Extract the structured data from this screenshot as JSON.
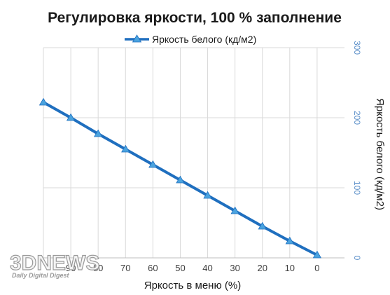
{
  "chart_data": {
    "type": "line",
    "title": "Регулировка яркости, 100 % заполнение",
    "xlabel": "Яркость в меню (%)",
    "ylabel": "Яркость белого (кд/м2)",
    "x": [
      100,
      90,
      80,
      70,
      60,
      50,
      40,
      30,
      20,
      10,
      0
    ],
    "x_ticks": [
      "90",
      "80",
      "70",
      "60",
      "50",
      "40",
      "30",
      "20",
      "10",
      "0"
    ],
    "y_ticks": [
      "0",
      "100",
      "200",
      "300"
    ],
    "ylim": [
      0,
      300
    ],
    "y_axis_side": "right",
    "grid": true,
    "legend_position": "top",
    "series": [
      {
        "name": "Яркость белого (кд/м2)",
        "color": "#1f6fbf",
        "marker": "triangle",
        "marker_color": "#4aa3df",
        "values": [
          222,
          200,
          177,
          155,
          133,
          111,
          89,
          67,
          45,
          24,
          4
        ]
      }
    ]
  },
  "watermark": {
    "main": "3DNEWS",
    "sub": "Daily Digital Digest"
  }
}
